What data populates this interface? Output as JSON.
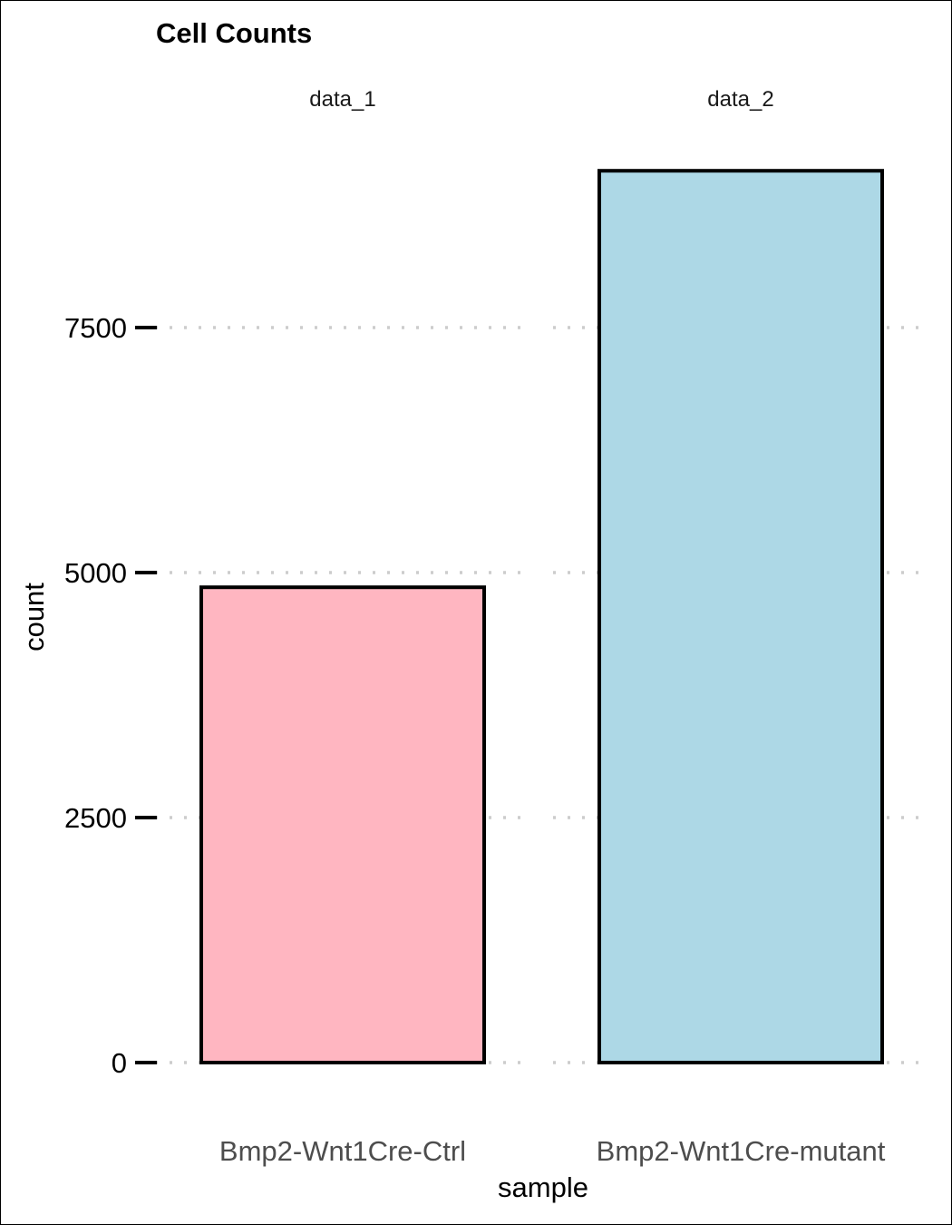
{
  "chart_data": {
    "type": "bar",
    "title": "Cell Counts",
    "xlabel": "sample",
    "ylabel": "count",
    "facets": [
      "data_1",
      "data_2"
    ],
    "categories": [
      "Bmp2-Wnt1Cre-Ctrl",
      "Bmp2-Wnt1Cre-mutant"
    ],
    "values": [
      4850,
      9100
    ],
    "colors": [
      "#ffb6c1",
      "#add8e6"
    ],
    "bar_outline": "#000000",
    "grid_color": "#cccccc",
    "grid": "dotted horizontal",
    "ylim": [
      0,
      10000
    ],
    "yticks": [
      0,
      2500,
      5000,
      7500
    ],
    "ytick_labels": [
      "0",
      "2500",
      "5000",
      "7500"
    ],
    "legend": "none"
  }
}
